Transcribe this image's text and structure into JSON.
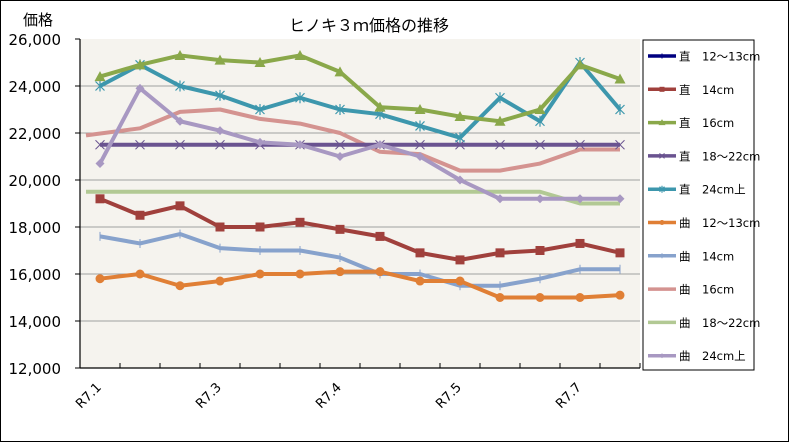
{
  "chart_data": {
    "type": "line",
    "title": "ヒノキ３ｍ価格の推移",
    "ylabel": "価格",
    "xlabel": "",
    "ylim": [
      12000,
      26000
    ],
    "yticks": [
      "12,000",
      "14,000",
      "16,000",
      "18,000",
      "20,000",
      "22,000",
      "24,000",
      "26,000"
    ],
    "ytick_values": [
      12000,
      14000,
      16000,
      18000,
      20000,
      22000,
      24000,
      26000
    ],
    "x_count": 14,
    "x_tick_labels": [
      {
        "index": 0,
        "label": "R7.1"
      },
      {
        "index": 3,
        "label": "R7.3"
      },
      {
        "index": 6,
        "label": "R7.4"
      },
      {
        "index": 9,
        "label": "R7.5"
      },
      {
        "index": 12,
        "label": "R7.7"
      }
    ],
    "grid": true,
    "legend": "right",
    "series": [
      {
        "name": "直　12～13cm",
        "color": "#000080",
        "marker": "plus",
        "values": []
      },
      {
        "name": "直　14cm",
        "color": "#a0403c",
        "marker": "square",
        "values": [
          19200,
          18500,
          18900,
          18000,
          18000,
          18200,
          17900,
          17600,
          16900,
          16600,
          16900,
          17000,
          17300,
          16900
        ]
      },
      {
        "name": "直　16cm",
        "color": "#8aa84a",
        "marker": "triangle",
        "values": [
          24400,
          24900,
          25300,
          25100,
          25000,
          25300,
          24600,
          23100,
          23000,
          22700,
          22500,
          23000,
          24900,
          24300
        ]
      },
      {
        "name": "直　18～22cm",
        "color": "#6a5390",
        "marker": "x",
        "values": [
          21500,
          21500,
          21500,
          21500,
          21500,
          21500,
          21500,
          21500,
          21500,
          21500,
          21500,
          21500,
          21500,
          21500
        ]
      },
      {
        "name": "直　24cm上",
        "color": "#3d97ad",
        "marker": "star",
        "values": [
          24000,
          24900,
          24000,
          23600,
          23000,
          23500,
          23000,
          22800,
          22300,
          21800,
          23500,
          22500,
          25000,
          23000
        ]
      },
      {
        "name": "曲　12～13cm",
        "color": "#e07f35",
        "marker": "circle",
        "values": [
          15800,
          16000,
          15500,
          15700,
          16000,
          16000,
          16100,
          16100,
          15700,
          15700,
          15000,
          15000,
          15000,
          15100
        ]
      },
      {
        "name": "曲　14cm",
        "color": "#87a2cc",
        "marker": "plus",
        "values": [
          17600,
          17300,
          17700,
          17100,
          17000,
          17000,
          16700,
          16000,
          16000,
          15500,
          15500,
          15800,
          16200,
          16200
        ]
      },
      {
        "name": "曲　16cm",
        "color": "#d49390",
        "marker": "none",
        "values": [
          21900,
          22200,
          22900,
          23000,
          22600,
          22400,
          22000,
          21200,
          21100,
          20400,
          20400,
          20700,
          21300,
          21300
        ]
      },
      {
        "name": "曲　18～22cm",
        "color": "#b2c994",
        "marker": "none",
        "values": [
          19500,
          19500,
          19500,
          19500,
          19500,
          19500,
          19500,
          19500,
          19500,
          19500,
          19500,
          19500,
          19000,
          19000
        ]
      },
      {
        "name": "曲　24cm上",
        "color": "#a898c2",
        "marker": "diamond",
        "values": [
          20700,
          23900,
          22500,
          22100,
          21600,
          21500,
          21000,
          21500,
          21000,
          20000,
          19200,
          19200,
          19200,
          19200
        ]
      }
    ]
  }
}
